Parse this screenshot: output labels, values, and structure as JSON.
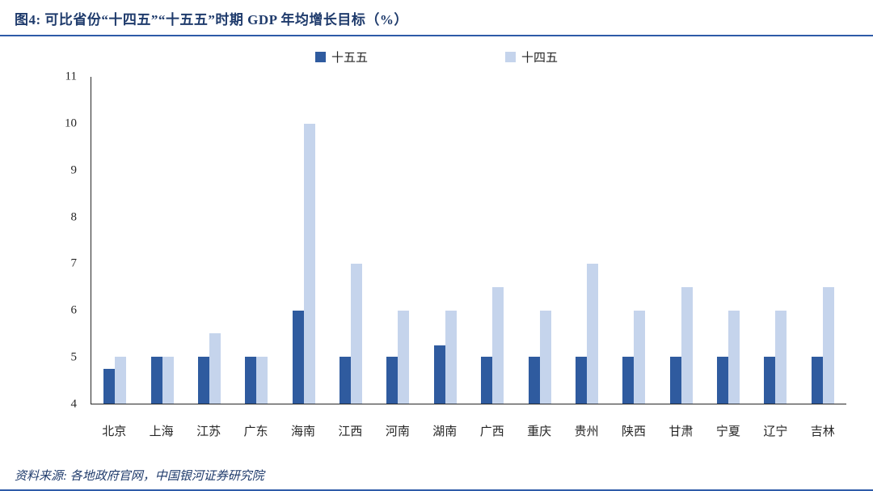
{
  "header": {
    "title": "图4:  可比省份“十四五”“十五五”时期 GDP 年均增长目标（%）"
  },
  "footer": {
    "source": "资料来源:  各地政府官网，中国银河证券研究院"
  },
  "colors": {
    "accent_rule": "#2E5BA8",
    "title_text": "#1F3B6C",
    "axis_line": "#262626",
    "series_dark": "#2F5B9F",
    "series_light": "#C5D4EC"
  },
  "chart_data": {
    "type": "bar",
    "title": "可比省份“十四五”“十五五”时期 GDP 年均增长目标（%）",
    "categories": [
      "北京",
      "上海",
      "江苏",
      "广东",
      "海南",
      "江西",
      "河南",
      "湖南",
      "广西",
      "重庆",
      "贵州",
      "陕西",
      "甘肃",
      "宁夏",
      "辽宁",
      "吉林"
    ],
    "series": [
      {
        "name": "十五五",
        "color": "#2F5B9F",
        "values": [
          4.75,
          5,
          5,
          5,
          6,
          5,
          5,
          5.25,
          5,
          5,
          5,
          5,
          5,
          5,
          5,
          5
        ]
      },
      {
        "name": "十四五",
        "color": "#C5D4EC",
        "values": [
          5,
          5,
          5.5,
          5,
          10,
          7,
          6,
          6,
          6.5,
          6,
          7,
          6,
          6.5,
          6,
          6,
          6.5
        ]
      }
    ],
    "xlabel": "",
    "ylabel": "",
    "ylim": [
      4,
      11
    ],
    "yticks": [
      4,
      5,
      6,
      7,
      8,
      9,
      10,
      11
    ],
    "grid": false,
    "legend_position": "top"
  }
}
